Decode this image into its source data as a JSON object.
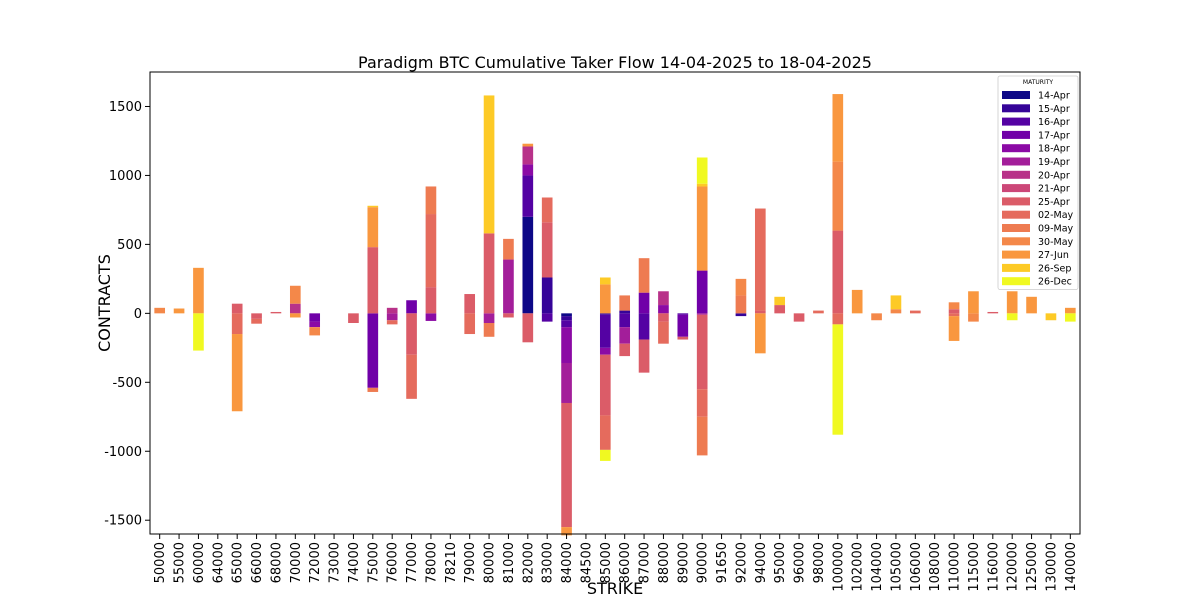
{
  "chart_data": {
    "type": "bar",
    "stacked": true,
    "title": "Paradigm BTC Cumulative Taker Flow 14-04-2025 to 18-04-2025",
    "xlabel": "STRIKE",
    "ylabel": "CONTRACTS",
    "ylim": [
      -1600,
      1750
    ],
    "yticks": [
      -1500,
      -1000,
      -500,
      0,
      500,
      1000,
      1500
    ],
    "grid": false,
    "legend_title": "MATURITY",
    "legend_position": "top-right",
    "categories": [
      "50000",
      "55000",
      "60000",
      "64000",
      "65000",
      "66000",
      "68000",
      "70000",
      "72000",
      "73000",
      "74000",
      "75000",
      "76000",
      "77000",
      "78000",
      "78210",
      "79000",
      "80000",
      "81000",
      "82000",
      "83000",
      "84000",
      "84500",
      "85000",
      "86000",
      "87000",
      "88000",
      "89000",
      "90000",
      "91650",
      "92000",
      "94000",
      "95000",
      "96000",
      "98000",
      "100000",
      "102000",
      "104000",
      "105000",
      "106000",
      "108000",
      "110000",
      "115000",
      "116000",
      "120000",
      "125000",
      "130000",
      "140000"
    ],
    "series": [
      {
        "name": "14-Apr",
        "color": "#0d0887",
        "values": [
          0,
          0,
          0,
          0,
          0,
          0,
          0,
          0,
          0,
          0,
          0,
          0,
          0,
          0,
          0,
          0,
          0,
          0,
          0,
          700,
          0,
          -20,
          0,
          0,
          0,
          0,
          0,
          0,
          0,
          0,
          0,
          0,
          0,
          0,
          0,
          0,
          0,
          0,
          0,
          0,
          0,
          0,
          0,
          0,
          0,
          0,
          0,
          0
        ]
      },
      {
        "name": "15-Apr",
        "color": "#350498",
        "values": [
          0,
          0,
          0,
          0,
          0,
          0,
          0,
          0,
          0,
          0,
          0,
          0,
          0,
          0,
          0,
          0,
          0,
          0,
          0,
          0,
          260,
          -30,
          0,
          -10,
          20,
          0,
          0,
          0,
          0,
          0,
          -20,
          0,
          0,
          0,
          0,
          0,
          0,
          0,
          0,
          0,
          0,
          0,
          0,
          0,
          0,
          0,
          0,
          0
        ]
      },
      {
        "name": "16-Apr",
        "color": "#5402a3",
        "values": [
          0,
          0,
          0,
          0,
          0,
          0,
          0,
          0,
          0,
          0,
          0,
          0,
          0,
          0,
          0,
          0,
          0,
          0,
          0,
          300,
          -60,
          -50,
          0,
          -240,
          -100,
          -190,
          0,
          -10,
          0,
          0,
          0,
          0,
          0,
          0,
          0,
          0,
          0,
          0,
          0,
          0,
          0,
          0,
          0,
          0,
          0,
          0,
          0,
          0
        ]
      },
      {
        "name": "17-Apr",
        "color": "#7000a8",
        "values": [
          0,
          0,
          0,
          0,
          0,
          0,
          0,
          0,
          -60,
          0,
          0,
          -540,
          0,
          95,
          0,
          0,
          0,
          0,
          0,
          0,
          0,
          0,
          0,
          0,
          0,
          150,
          0,
          -160,
          310,
          0,
          0,
          0,
          0,
          0,
          0,
          0,
          0,
          0,
          0,
          0,
          0,
          0,
          0,
          0,
          0,
          0,
          0,
          0
        ]
      },
      {
        "name": "18-Apr",
        "color": "#8b0aa5",
        "values": [
          0,
          0,
          0,
          0,
          0,
          0,
          0,
          0,
          -40,
          0,
          0,
          0,
          0,
          0,
          -55,
          0,
          0,
          0,
          0,
          80,
          0,
          -260,
          0,
          -50,
          0,
          0,
          60,
          0,
          0,
          0,
          0,
          0,
          0,
          0,
          0,
          0,
          0,
          0,
          0,
          0,
          0,
          0,
          0,
          0,
          0,
          0,
          0,
          0
        ]
      },
      {
        "name": "19-Apr",
        "color": "#a31e9a",
        "values": [
          0,
          0,
          0,
          0,
          0,
          0,
          0,
          0,
          0,
          0,
          0,
          0,
          -50,
          0,
          0,
          0,
          0,
          -70,
          390,
          0,
          0,
          -290,
          0,
          0,
          -120,
          0,
          0,
          0,
          -10,
          0,
          0,
          0,
          0,
          0,
          0,
          0,
          0,
          0,
          0,
          0,
          0,
          0,
          0,
          0,
          0,
          0,
          0,
          0
        ]
      },
      {
        "name": "20-Apr",
        "color": "#b83289",
        "values": [
          0,
          0,
          0,
          0,
          0,
          0,
          0,
          70,
          0,
          0,
          0,
          0,
          40,
          0,
          0,
          0,
          0,
          0,
          0,
          130,
          0,
          0,
          0,
          0,
          0,
          0,
          100,
          0,
          0,
          0,
          0,
          0,
          0,
          0,
          0,
          0,
          0,
          0,
          0,
          0,
          0,
          0,
          0,
          0,
          0,
          0,
          0,
          0
        ]
      },
      {
        "name": "21-Apr",
        "color": "#cc4778",
        "values": [
          0,
          0,
          0,
          0,
          0,
          0,
          0,
          0,
          0,
          0,
          0,
          0,
          0,
          0,
          0,
          0,
          0,
          0,
          0,
          0,
          0,
          0,
          0,
          0,
          0,
          0,
          0,
          0,
          0,
          0,
          0,
          0,
          0,
          0,
          0,
          0,
          0,
          0,
          0,
          0,
          0,
          0,
          0,
          0,
          0,
          0,
          0,
          0
        ]
      },
      {
        "name": "25-Apr",
        "color": "#db5c68",
        "values": [
          0,
          0,
          0,
          0,
          70,
          -40,
          10,
          0,
          0,
          0,
          -70,
          480,
          0,
          -300,
          190,
          0,
          140,
          580,
          -30,
          -210,
          400,
          -900,
          0,
          -440,
          -90,
          -240,
          -60,
          -20,
          -540,
          0,
          0,
          20,
          60,
          -60,
          0,
          600,
          0,
          0,
          0,
          0,
          0,
          30,
          0,
          10,
          0,
          0,
          0,
          0
        ]
      },
      {
        "name": "02-May",
        "color": "#e56b5d",
        "values": [
          0,
          0,
          0,
          0,
          -150,
          -35,
          0,
          0,
          0,
          0,
          0,
          0,
          -30,
          -320,
          530,
          0,
          -150,
          0,
          0,
          0,
          180,
          0,
          0,
          -250,
          0,
          0,
          -160,
          0,
          -200,
          0,
          0,
          740,
          0,
          0,
          20,
          -80,
          0,
          0,
          0,
          20,
          0,
          -20,
          0,
          0,
          0,
          0,
          0,
          0
        ]
      },
      {
        "name": "09-May",
        "color": "#ee7b51",
        "values": [
          0,
          0,
          0,
          0,
          0,
          0,
          0,
          0,
          0,
          0,
          0,
          -30,
          0,
          0,
          200,
          0,
          0,
          -100,
          150,
          0,
          0,
          0,
          0,
          0,
          110,
          250,
          0,
          0,
          -280,
          0,
          130,
          0,
          0,
          0,
          0,
          0,
          0,
          0,
          0,
          0,
          0,
          0,
          0,
          0,
          0,
          0,
          0,
          0
        ]
      },
      {
        "name": "30-May",
        "color": "#f48849",
        "values": [
          40,
          0,
          0,
          0,
          0,
          0,
          0,
          130,
          -60,
          0,
          0,
          0,
          0,
          0,
          0,
          0,
          0,
          0,
          0,
          0,
          0,
          0,
          0,
          0,
          0,
          0,
          0,
          0,
          0,
          0,
          120,
          0,
          0,
          0,
          0,
          500,
          0,
          -50,
          30,
          0,
          0,
          50,
          -60,
          0,
          0,
          0,
          0,
          0
        ]
      },
      {
        "name": "27-Jun",
        "color": "#f9973f",
        "values": [
          0,
          35,
          330,
          0,
          -560,
          0,
          0,
          -30,
          0,
          0,
          0,
          290,
          0,
          0,
          0,
          0,
          0,
          0,
          0,
          20,
          0,
          -60,
          0,
          210,
          0,
          0,
          0,
          0,
          610,
          0,
          0,
          -290,
          0,
          0,
          0,
          490,
          170,
          0,
          0,
          0,
          0,
          -180,
          160,
          0,
          160,
          120,
          0,
          40
        ]
      },
      {
        "name": "26-Sep",
        "color": "#fdca26",
        "values": [
          0,
          0,
          0,
          0,
          0,
          0,
          0,
          0,
          0,
          0,
          0,
          10,
          0,
          0,
          0,
          0,
          0,
          1000,
          0,
          0,
          0,
          0,
          0,
          50,
          0,
          0,
          0,
          0,
          20,
          0,
          0,
          0,
          60,
          0,
          0,
          0,
          0,
          0,
          100,
          0,
          0,
          0,
          0,
          0,
          0,
          0,
          -50,
          0
        ]
      },
      {
        "name": "26-Dec",
        "color": "#f0f921",
        "values": [
          0,
          0,
          -270,
          0,
          0,
          0,
          0,
          0,
          0,
          0,
          0,
          0,
          0,
          0,
          0,
          0,
          0,
          0,
          0,
          0,
          0,
          0,
          0,
          -80,
          0,
          0,
          0,
          0,
          190,
          0,
          0,
          0,
          0,
          0,
          0,
          -800,
          0,
          0,
          0,
          0,
          0,
          0,
          0,
          0,
          -50,
          0,
          0,
          -60
        ]
      }
    ]
  }
}
